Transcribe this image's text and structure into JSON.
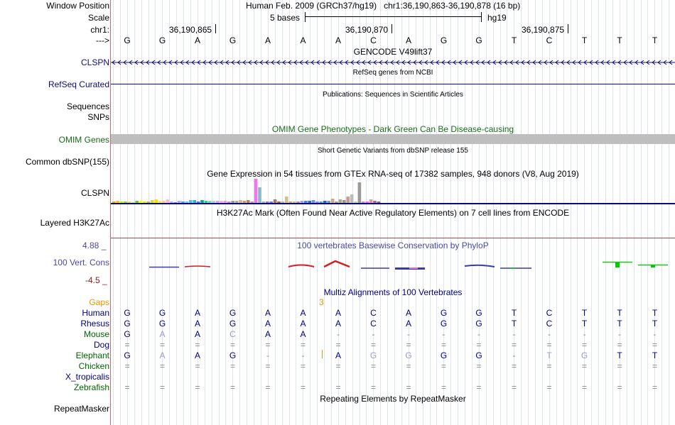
{
  "header": {
    "window_position_label": "Window Position",
    "window_position_value": "Human Feb. 2009 (GRCh37/hg19)   chr1:36,190,863-36,190,878 (16 bp)",
    "scale_label": "Scale",
    "scale_size": "5 bases",
    "scale_assembly": "hg19",
    "chr_label": "chr1:",
    "coords": [
      "36,190,865",
      "36,190,870",
      "36,190,875"
    ],
    "strand_label": "--->",
    "bases": [
      "G",
      "G",
      "A",
      "G",
      "A",
      "A",
      "A",
      "C",
      "A",
      "G",
      "G",
      "T",
      "C",
      "T",
      "T",
      "T"
    ]
  },
  "tracks": {
    "gencode_title": "GENCODE V49lift37",
    "gencode_label": "CLSPN",
    "refseq_title": "RefSeq genes from NCBI",
    "refseq_label": "RefSeq Curated",
    "publications_title": "Publications: Sequences in Scientific Articles",
    "sequences_label": "Sequences",
    "snps_label": "SNPs",
    "omim_title": "OMIM Gene Phenotypes - Dark Green Can Be Disease-causing",
    "omim_label": "OMIM Genes",
    "dbsnp_title": "Short Genetic Variants from dbSNP release 155",
    "dbsnp_label": "Common dbSNP(155)",
    "gtex_title": "Gene Expression in 54 tissues from GTEx RNA-seq of 17382 samples, 948 donors (V8, Aug 2019)",
    "gtex_label": "CLSPN",
    "h3k27ac_title": "H3K27Ac Mark (Often Found Near Active Regulatory Elements) on 7 cell lines from ENCODE",
    "h3k27ac_label": "Layered H3K27Ac",
    "cons_title": "100 vertebrates Basewise Conservation by PhyloP",
    "cons_label": "100 Vert. Cons",
    "cons_max": "4.88 _",
    "cons_min": "-4.5 _",
    "multiz_title": "Multiz Alignments of 100 Vertebrates",
    "gaps_label": "Gaps",
    "gaps_value": "3",
    "repeat_title": "Repeating Elements by RepeatMasker",
    "repeat_label": "RepeatMasker"
  },
  "gtex_bars": {
    "values": [
      2,
      3,
      2,
      2,
      2,
      1,
      3,
      3,
      2,
      2,
      4,
      5,
      3,
      3,
      5,
      2,
      1,
      3,
      2,
      2,
      4,
      4,
      2,
      4,
      3,
      3,
      3,
      3,
      3,
      3,
      2,
      3,
      3,
      4,
      3,
      4,
      2,
      34,
      22,
      2,
      2,
      2,
      5,
      2,
      2,
      9,
      2,
      2,
      2,
      3,
      3,
      3,
      4,
      2,
      2,
      3,
      3,
      6,
      2,
      5,
      4,
      9,
      12,
      2,
      29,
      2,
      2,
      5,
      3,
      2
    ],
    "colors": [
      "#ffaa00",
      "#ffbb33",
      "#aaff00",
      "#88cc55",
      "#ffcc66",
      "#99ff66",
      "#66cc33",
      "#ffff00",
      "#ddee22",
      "#bbbb44",
      "#ccdd44",
      "#ffdd00",
      "#eeee55",
      "#ffcc99",
      "#ffbbcc",
      "#99bbff",
      "#6688ff",
      "#aaaaff",
      "#33aaee",
      "#66ccff",
      "#55bbdd",
      "#44aacc",
      "#2288ff",
      "#00aa88",
      "#33cc99",
      "#77ddaa",
      "#aaccff",
      "#ccaaff",
      "#ffaaee",
      "#ee99dd",
      "#dd88cc",
      "#999999",
      "#aaaaaa",
      "#bbbb99",
      "#cc9966",
      "#aa8866",
      "#cc88cc",
      "#ee77ee",
      "#88bbcc",
      "#bbaa99",
      "#9977bb",
      "#7777dd",
      "#aa7766",
      "#996644",
      "#aabbcc",
      "#ddbb88",
      "#ccaa77",
      "#ccbbaa",
      "#aaa088",
      "#a0a0ff",
      "#4488dd",
      "#3366cc",
      "#6699ee",
      "#aa77ee",
      "#55aacc",
      "#2266dd",
      "#8899aa",
      "#c8a890",
      "#bb9977",
      "#aaaa88",
      "#999988",
      "#c0a090",
      "#bbbbbb",
      "#ccccaa",
      "#999999",
      "#cc88ee",
      "#ff66ff",
      "#dd99aa",
      "#aa66aa",
      "#886688"
    ]
  },
  "multiz": {
    "species": [
      {
        "name": "Human",
        "color": "#000080",
        "bases": [
          "G",
          "G",
          "A",
          "G",
          "A",
          "A",
          "A",
          "C",
          "A",
          "G",
          "G",
          "T",
          "C",
          "T",
          "T",
          "T"
        ]
      },
      {
        "name": "Rhesus",
        "color": "#000080",
        "bases": [
          "G",
          "G",
          "A",
          "G",
          "A",
          "A",
          "A",
          "C",
          "A",
          "G",
          "G",
          "T",
          "C",
          "T",
          "T",
          "T"
        ]
      },
      {
        "name": "Mouse",
        "color": "#006400",
        "bases": [
          "G",
          "A",
          "A",
          "C",
          "A",
          "A",
          "-",
          "-",
          "-",
          "-",
          "-",
          "-",
          "-",
          "-",
          "-",
          "-"
        ]
      },
      {
        "name": "Dog",
        "color": "#000080",
        "bases": [
          "=",
          "=",
          "=",
          "=",
          "=",
          "=",
          "=",
          "=",
          "=",
          "=",
          "=",
          "=",
          "=",
          "=",
          "=",
          "="
        ]
      },
      {
        "name": "Elephant",
        "color": "#006400",
        "bases": [
          "G",
          "A",
          "A",
          "G",
          "-",
          "-",
          "A",
          "G",
          "G",
          "G",
          "G",
          "-",
          "T",
          "G",
          "T",
          "T"
        ]
      },
      {
        "name": "Chicken",
        "color": "#006400",
        "bases": [
          "=",
          "=",
          "=",
          "=",
          "=",
          "=",
          "=",
          "=",
          "=",
          "=",
          "=",
          "=",
          "=",
          "=",
          "=",
          "="
        ]
      },
      {
        "name": "X_tropicalis",
        "color": "#000080",
        "bases": [
          "",
          "",
          "",
          "",
          "",
          "",
          "",
          "",
          "",
          "",
          "",
          "",
          "",
          "",
          "",
          ""
        ]
      },
      {
        "name": "Zebrafish",
        "color": "#006400",
        "bases": [
          "=",
          "=",
          "=",
          "=",
          "=",
          "=",
          "=",
          "=",
          "=",
          "=",
          "=",
          "=",
          "=",
          "=",
          "=",
          "="
        ]
      }
    ]
  },
  "colors": {
    "track_title": "#000000",
    "gene_label": "#0c0c78",
    "omim_green": "#1a6b1a",
    "cons_blue": "#4a4aa0",
    "gap_orange": "#e69500",
    "separator_red": "#c04040"
  }
}
